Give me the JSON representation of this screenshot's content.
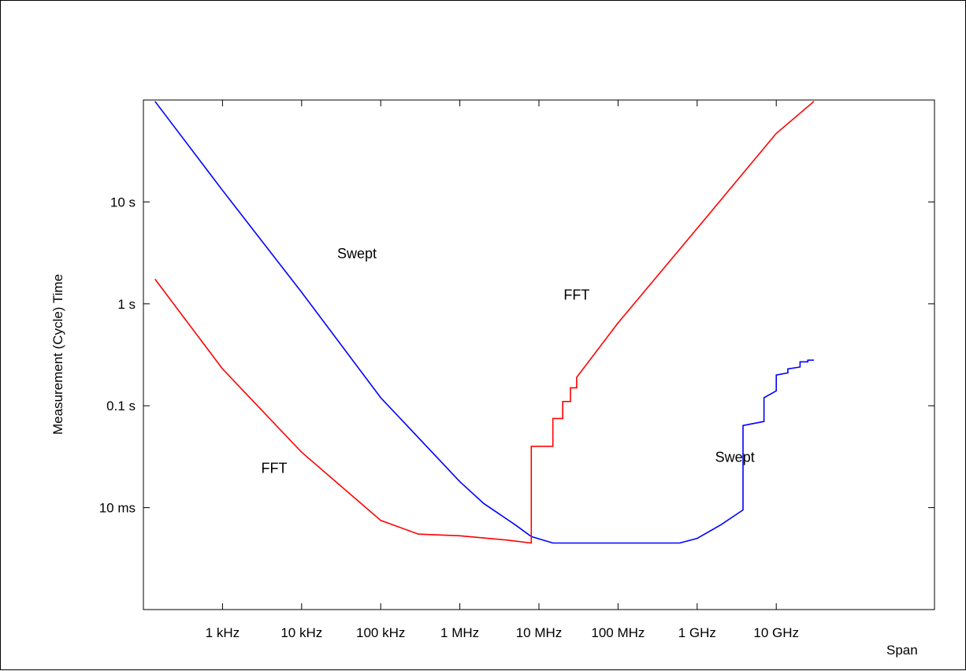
{
  "chart_data": {
    "type": "line",
    "xscale": "log",
    "yscale": "log",
    "xlabel": "Span",
    "ylabel": "Measurement (Cycle) Time",
    "x_ticks": [
      {
        "value": 1000,
        "label": "1 kHz"
      },
      {
        "value": 10000,
        "label": "10 kHz"
      },
      {
        "value": 100000,
        "label": "100 kHz"
      },
      {
        "value": 1000000,
        "label": "1 MHz"
      },
      {
        "value": 10000000,
        "label": "10 MHz"
      },
      {
        "value": 100000000,
        "label": "100 MHz"
      },
      {
        "value": 1000000000,
        "label": "1 GHz"
      },
      {
        "value": 10000000000,
        "label": "10 GHz"
      }
    ],
    "y_ticks": [
      {
        "value": 0.01,
        "label": "10 ms"
      },
      {
        "value": 0.1,
        "label": "0.1 s"
      },
      {
        "value": 1,
        "label": "1 s"
      },
      {
        "value": 10,
        "label": "10 s"
      }
    ],
    "xlim": [
      100,
      1000000000000
    ],
    "ylim": [
      0.001,
      100
    ],
    "grid": false,
    "colors": {
      "swept": "#0000ff",
      "fft": "#ff0000"
    },
    "series": [
      {
        "key": "swept",
        "color": "#0000ff",
        "x": [
          140,
          1000,
          10000,
          100000,
          1000000,
          2000000,
          5000000,
          8000000,
          15000000,
          600000000,
          1000000000,
          2000000000,
          3800000000,
          3800000000,
          7000000000,
          7000000000,
          10000000000,
          10000000000,
          14000000000,
          14000000000,
          20000000000,
          20000000000,
          25000000000,
          25000000000,
          30000000000
        ],
        "y": [
          97,
          13,
          1.3,
          0.12,
          0.018,
          0.011,
          0.0068,
          0.0052,
          0.0045,
          0.0045,
          0.005,
          0.0068,
          0.0095,
          0.064,
          0.07,
          0.12,
          0.14,
          0.2,
          0.21,
          0.23,
          0.24,
          0.27,
          0.27,
          0.28,
          0.28
        ]
      },
      {
        "key": "fft",
        "color": "#ff0000",
        "x": [
          140,
          1000,
          10000,
          100000,
          300000,
          1000000,
          4000000,
          8000000,
          8000000,
          15000000,
          15000000,
          20000000,
          20000000,
          25000000,
          25000000,
          30000000,
          30000000,
          100000000,
          1000000000,
          10000000000,
          30000000000
        ],
        "y": [
          1.75,
          0.23,
          0.035,
          0.0075,
          0.0055,
          0.0053,
          0.0048,
          0.0045,
          0.04,
          0.04,
          0.075,
          0.075,
          0.11,
          0.11,
          0.15,
          0.15,
          0.19,
          0.65,
          5.5,
          47,
          97
        ]
      }
    ],
    "annotations": [
      {
        "text": "Swept",
        "x": 50000,
        "y": 2.8
      },
      {
        "text": "FFT",
        "x": 30000000,
        "y": 1.1
      },
      {
        "text": "FFT",
        "x": 4500,
        "y": 0.022
      },
      {
        "text": "Swept",
        "x": 3000000000,
        "y": 0.028
      }
    ]
  }
}
